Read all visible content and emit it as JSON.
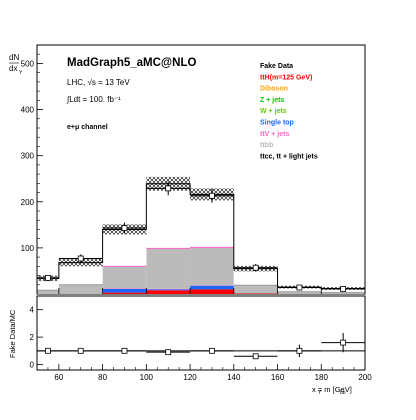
{
  "chart_data": [
    {
      "type": "bar",
      "panel": "main",
      "title": "MadGraph5_aMC@NLO",
      "annotations": [
        "LHC, √s = 13 TeV",
        "∫Ldt = 100. fb⁻¹",
        "e+μ channel"
      ],
      "ylabel_top": "dN",
      "ylabel_bottom": "dx",
      "ylabel_sub": "Y",
      "xlabel": "",
      "x_edges": [
        50,
        60,
        80,
        100,
        120,
        140,
        160,
        180,
        200
      ],
      "ylim": [
        0,
        540
      ],
      "yticks": [
        100,
        200,
        300,
        400,
        500
      ],
      "stacked_series": [
        {
          "name": "ttH(m=125 GeV)",
          "color": "#ff0000",
          "values": [
            0,
            0,
            3,
            8,
            10,
            1,
            0,
            0
          ]
        },
        {
          "name": "Diboson",
          "color": "#ffa500",
          "values": [
            0,
            0,
            0,
            0,
            0,
            0,
            0,
            0
          ]
        },
        {
          "name": "Z + jets",
          "color": "#00cc00",
          "values": [
            0,
            0,
            0,
            0,
            0,
            0,
            0,
            0
          ]
        },
        {
          "name": "W + jets",
          "color": "#66cc00",
          "values": [
            0,
            0,
            0,
            0,
            0,
            0,
            0,
            0
          ]
        },
        {
          "name": "Single top",
          "color": "#1a66ff",
          "values": [
            0,
            0,
            8,
            2,
            8,
            0,
            0,
            0
          ]
        },
        {
          "name": "ttV + jets",
          "color": "#ff66cc",
          "values": [
            0,
            0,
            1,
            1,
            1,
            0,
            0,
            0
          ]
        },
        {
          "name": "ttbb",
          "color": "#bbbbbb",
          "values": [
            8,
            20,
            48,
            88,
            82,
            18,
            5,
            3
          ]
        },
        {
          "name": "ttcc, tt + light jets",
          "color": "#ffffff",
          "values": [
            26,
            48,
            80,
            140,
            115,
            36,
            10,
            9
          ]
        }
      ],
      "data": {
        "name": "Fake Data",
        "values": [
          35,
          77,
          143,
          229,
          213,
          57,
          14,
          11
        ],
        "errors": [
          6,
          9,
          12,
          15,
          15,
          8,
          4,
          3
        ]
      },
      "uncertainty_band": [
        6,
        8,
        11,
        15,
        13,
        6,
        3,
        3
      ],
      "legend": [
        "Fake Data",
        "ttH(m=125 GeV)",
        "Diboson",
        "Z + jets",
        "W + jets",
        "Single top",
        "ttV + jets",
        "ttbb",
        "ttcc, tt + light jets"
      ],
      "legend_colors": [
        "#000000",
        "#ff0000",
        "#ffa500",
        "#00cc00",
        "#66cc00",
        "#1a66ff",
        "#ff66cc",
        "#bbbbbb",
        "#000000"
      ],
      "legend_position": "top-right"
    },
    {
      "type": "scatter",
      "panel": "ratio",
      "ylabel": "Fake Data/MC",
      "xlabel": "x  = m   [GeV]",
      "xlabel_sub1": "Y",
      "xlabel_sub2": "bb",
      "x": [
        55,
        70,
        90,
        110,
        130,
        150,
        170,
        190
      ],
      "x_edges": [
        50,
        60,
        80,
        100,
        120,
        140,
        160,
        180,
        200
      ],
      "values": [
        1.0,
        1.0,
        1.0,
        0.9,
        1.0,
        0.6,
        1.0,
        1.6
      ],
      "errors": [
        0.2,
        0.15,
        0.12,
        0.1,
        0.1,
        0.18,
        0.45,
        0.7
      ],
      "ylim": [
        -0.4,
        5.0
      ],
      "yticks": [
        0,
        2,
        4
      ],
      "xlim": [
        50,
        200
      ],
      "xticks": [
        60,
        80,
        100,
        120,
        140,
        160,
        180,
        200
      ],
      "reference_line": 1
    }
  ]
}
